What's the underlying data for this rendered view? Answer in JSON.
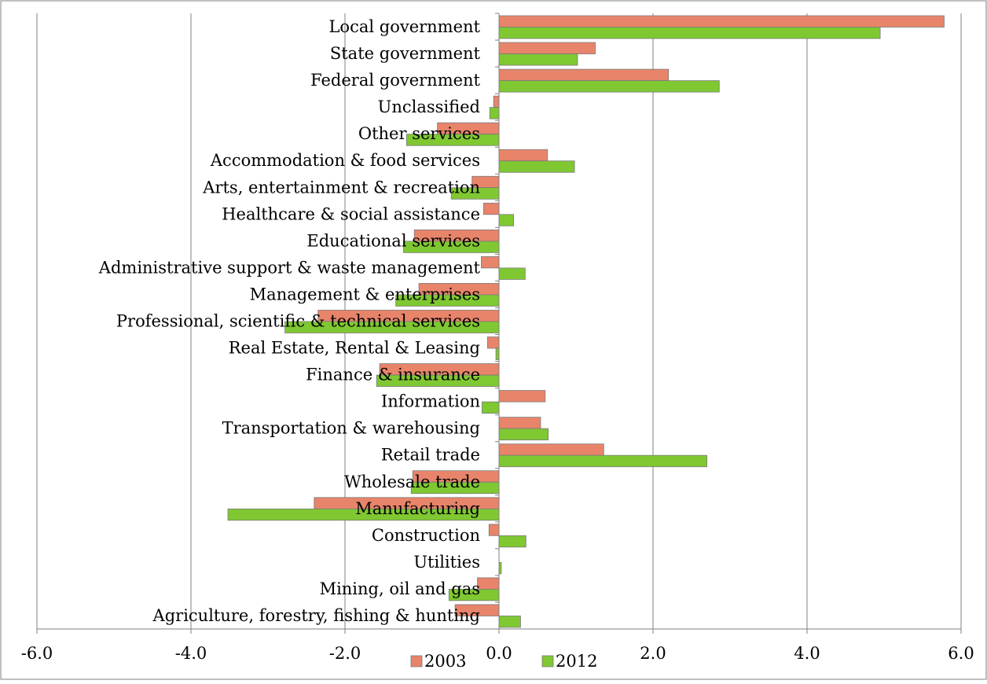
{
  "chart_data": {
    "type": "bar",
    "orientation": "horizontal",
    "categories": [
      "Local government",
      "State government",
      "Federal government",
      "Unclassified",
      "Other services",
      "Accommodation & food services",
      "Arts, entertainment & recreation",
      "Healthcare & social assistance",
      "Educational services",
      "Administrative support & waste management",
      "Management & enterprises",
      "Professional, scientific & technical services",
      "Real Estate, Rental & Leasing",
      "Finance & insurance",
      "Information",
      "Transportation & warehousing",
      "Retail trade",
      "Wholesale trade",
      "Manufacturing",
      "Construction",
      "Utilities",
      "Mining, oil and gas",
      "Agriculture, forestry, fishing & hunting"
    ],
    "series": [
      {
        "name": "2003",
        "color": "#e8846a",
        "values": [
          5.78,
          1.25,
          2.2,
          -0.07,
          -0.8,
          0.63,
          -0.35,
          -0.2,
          -1.1,
          -0.23,
          -1.04,
          -2.35,
          -0.15,
          -1.55,
          0.6,
          0.54,
          1.36,
          -1.12,
          -2.4,
          -0.13,
          0.0,
          -0.28,
          -0.57
        ]
      },
      {
        "name": "2012",
        "color": "#7fc832",
        "values": [
          4.95,
          1.02,
          2.86,
          -0.12,
          -1.2,
          0.98,
          -0.62,
          0.19,
          -1.24,
          0.34,
          -1.34,
          -2.78,
          -0.04,
          -1.59,
          -0.22,
          0.64,
          2.7,
          -1.14,
          -3.52,
          0.35,
          0.03,
          -0.65,
          0.28
        ]
      }
    ],
    "xlim": [
      -6.0,
      6.0
    ],
    "ticks": [
      "-6.0",
      "-4.0",
      "-2.0",
      "0.0",
      "2.0",
      "4.0",
      "6.0"
    ],
    "tick_values": [
      -6,
      -4,
      -2,
      0,
      2,
      4,
      6
    ],
    "grid": true,
    "legend_position": "bottom-center",
    "axis_color": "#808080",
    "grid_color": "#808080",
    "border_color": "#808080"
  }
}
